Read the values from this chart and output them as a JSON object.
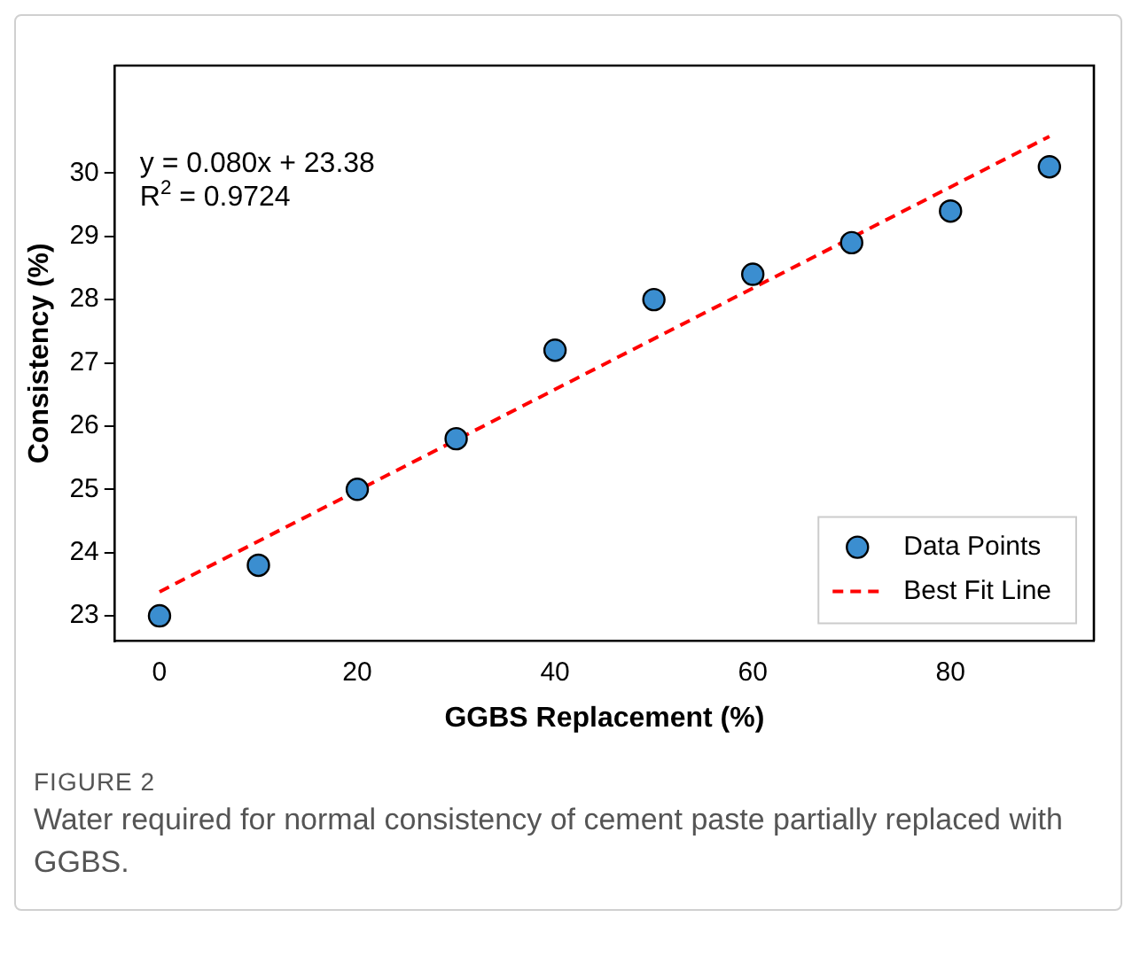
{
  "chart_data": {
    "type": "scatter",
    "xlabel": "GGBS Replacement (%)",
    "ylabel": "Consistency (%)",
    "xlim": [
      -4.5,
      94.5
    ],
    "ylim": [
      22.6,
      31.7
    ],
    "xticks": [
      0,
      20,
      40,
      60,
      80
    ],
    "yticks": [
      23,
      24,
      25,
      26,
      27,
      28,
      29,
      30
    ],
    "grid": false,
    "legend": "bottom right",
    "marker": "circle",
    "series": [
      {
        "name": "Data Points",
        "color": "#3b8ed0",
        "x": [
          0,
          10,
          20,
          30,
          40,
          50,
          60,
          70,
          80,
          90
        ],
        "values": [
          23,
          23.8,
          25,
          25.8,
          27.2,
          28,
          28.4,
          28.9,
          29.4,
          30.1
        ]
      },
      {
        "name": "Best Fit Line",
        "type": "line",
        "color": "#ff0000",
        "line_style": "dashed",
        "marker": "none",
        "x": [
          0,
          90
        ],
        "values": [
          23.38,
          30.58
        ]
      }
    ],
    "annotations": [
      "y = 0.080x + 23.38",
      "R$^{2}$ = 0.9724",
      "FIGURE 2",
      "Water required for normal consistency of cement paste partially replaced with GGBS."
    ]
  }
}
